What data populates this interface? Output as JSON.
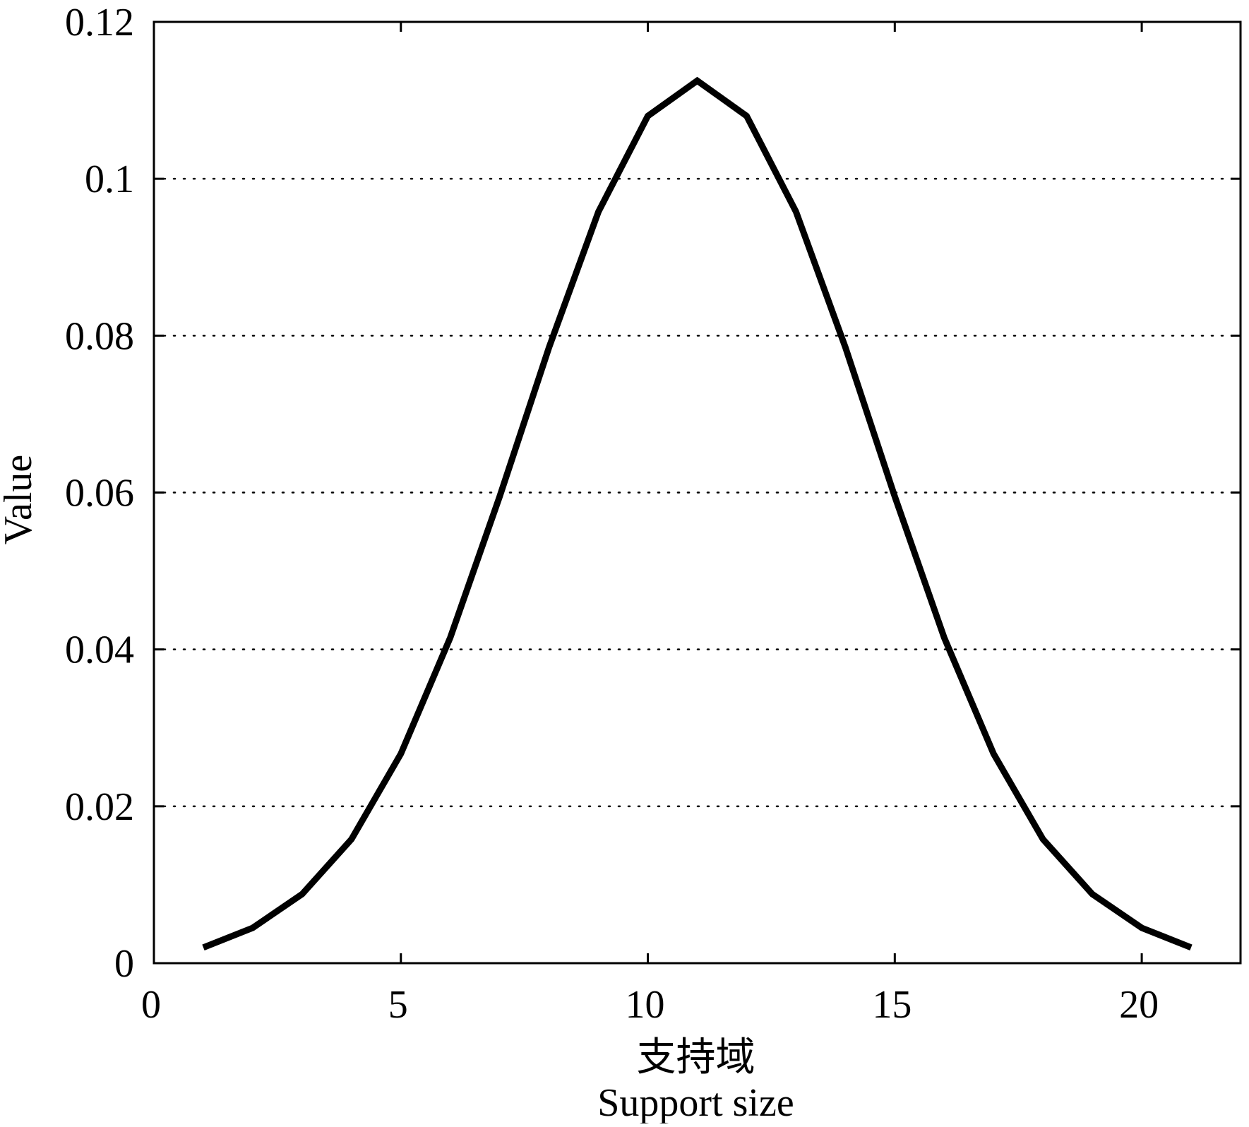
{
  "chart_data": {
    "type": "line",
    "title": "",
    "xlabel_cn": "支持域",
    "xlabel": "Support size",
    "ylabel": "Value",
    "xlim": [
      0,
      22
    ],
    "ylim": [
      0,
      0.12
    ],
    "xticks": [
      0,
      5,
      10,
      15,
      20
    ],
    "yticks": [
      0,
      0.02,
      0.04,
      0.06,
      0.08,
      0.1,
      0.12
    ],
    "xtick_labels": [
      "0",
      "5",
      "10",
      "15",
      "20"
    ],
    "ytick_labels": [
      "0",
      "0.02",
      "0.04",
      "0.06",
      "0.08",
      "0.1",
      "0.12"
    ],
    "grid": "horizontal-dotted",
    "legend": "none",
    "series": [
      {
        "color": "#000000",
        "x": [
          1,
          2,
          3,
          4,
          5,
          6,
          7,
          8,
          9,
          10,
          11,
          12,
          13,
          14,
          15,
          16,
          17,
          18,
          19,
          20,
          21
        ],
        "y": [
          0.002,
          0.0045,
          0.0088,
          0.0158,
          0.0267,
          0.0415,
          0.0595,
          0.0785,
          0.0958,
          0.108,
          0.1125,
          0.108,
          0.0958,
          0.0785,
          0.0595,
          0.0415,
          0.0267,
          0.0158,
          0.0088,
          0.0045,
          0.002
        ]
      }
    ]
  }
}
